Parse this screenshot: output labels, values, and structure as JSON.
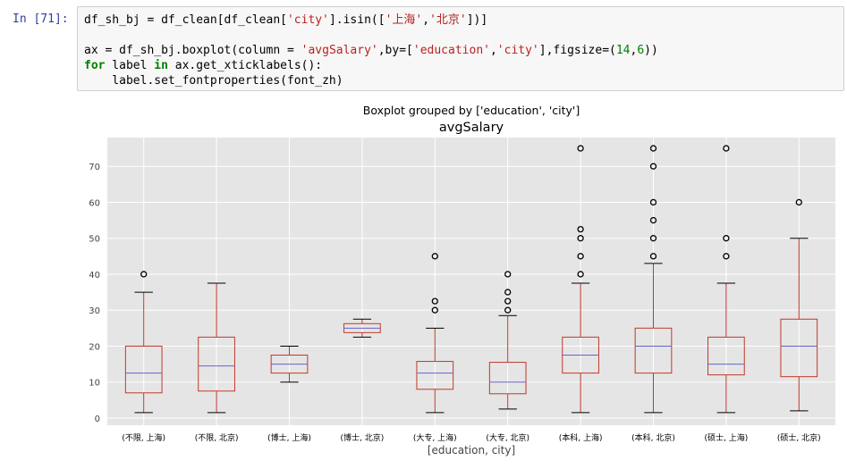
{
  "cell": {
    "prompt": "In [71]:",
    "code_lines": [
      [
        [
          "t",
          "df_sh_bj = df_clean[df_clean["
        ],
        [
          "s",
          "'city'"
        ],
        [
          "t",
          "].isin(["
        ],
        [
          "s",
          "'上海'"
        ],
        [
          "t",
          ","
        ],
        [
          "s",
          "'北京'"
        ],
        [
          "t",
          "])]"
        ]
      ],
      [],
      [
        [
          "t",
          "ax = df_sh_bj.boxplot(column = "
        ],
        [
          "s",
          "'avgSalary'"
        ],
        [
          "t",
          ",by=["
        ],
        [
          "s",
          "'education'"
        ],
        [
          "t",
          ","
        ],
        [
          "s",
          "'city'"
        ],
        [
          "t",
          "],figsize=("
        ],
        [
          "n",
          "14"
        ],
        [
          "t",
          ","
        ],
        [
          "n",
          "6"
        ],
        [
          "t",
          "))"
        ]
      ],
      [
        [
          "k",
          "for"
        ],
        [
          "t",
          " label "
        ],
        [
          "k",
          "in"
        ],
        [
          "t",
          " ax.get_xticklabels():"
        ]
      ],
      [
        [
          "t",
          "    label.set_fontproperties(font_zh)"
        ]
      ]
    ]
  },
  "chart_data": {
    "type": "box",
    "suptitle": "Boxplot grouped by ['education', 'city']",
    "title": "avgSalary",
    "xlabel": "[education, city]",
    "ylabel": "",
    "ylim": [
      -2,
      78
    ],
    "yticks": [
      0,
      10,
      20,
      30,
      40,
      50,
      60,
      70
    ],
    "grid": true,
    "colors": {
      "plot_bg": "#e5e5e5",
      "box": "#c0392b",
      "median": "#6666cc",
      "whisker": "#c0392b",
      "cap": "#000000",
      "grid": "#ffffff",
      "flier": "#000000"
    },
    "groups": [
      {
        "label": "(不限, 上海)",
        "whislo": 1.5,
        "q1": 7,
        "med": 12.5,
        "q3": 20,
        "whishi": 35,
        "fliers": [
          40
        ]
      },
      {
        "label": "(不限, 北京)",
        "whislo": 1.5,
        "q1": 7.5,
        "med": 14.5,
        "q3": 22.5,
        "whishi": 37.5,
        "fliers": []
      },
      {
        "label": "(博士, 上海)",
        "whislo": 10,
        "q1": 12.5,
        "med": 15,
        "q3": 17.5,
        "whishi": 20,
        "fliers": []
      },
      {
        "label": "(博士, 北京)",
        "whislo": 22.5,
        "q1": 23.75,
        "med": 25,
        "q3": 26.25,
        "whishi": 27.5,
        "fliers": []
      },
      {
        "label": "(大专, 上海)",
        "whislo": 1.5,
        "q1": 8,
        "med": 12.5,
        "q3": 15.75,
        "whishi": 25,
        "fliers": [
          30,
          32.5,
          45
        ]
      },
      {
        "label": "(大专, 北京)",
        "whislo": 2.5,
        "q1": 6.75,
        "med": 10,
        "q3": 15.5,
        "whishi": 28.5,
        "fliers": [
          30,
          32.5,
          35,
          40
        ]
      },
      {
        "label": "(本科, 上海)",
        "whislo": 1.5,
        "q1": 12.5,
        "med": 17.5,
        "q3": 22.5,
        "whishi": 37.5,
        "fliers": [
          40,
          45,
          50,
          52.5,
          75
        ]
      },
      {
        "label": "(本科, 北京)",
        "whislo": 1.5,
        "q1": 12.5,
        "med": 20,
        "q3": 25,
        "whishi": 43,
        "fliers": [
          45,
          50,
          55,
          60,
          70,
          75
        ]
      },
      {
        "label": "(硕士, 上海)",
        "whislo": 1.5,
        "q1": 12,
        "med": 15,
        "q3": 22.5,
        "whishi": 37.5,
        "fliers": [
          45,
          50,
          75
        ]
      },
      {
        "label": "(硕士, 北京)",
        "whislo": 2,
        "q1": 11.5,
        "med": 20,
        "q3": 27.5,
        "whishi": 50,
        "fliers": [
          60
        ]
      }
    ]
  }
}
